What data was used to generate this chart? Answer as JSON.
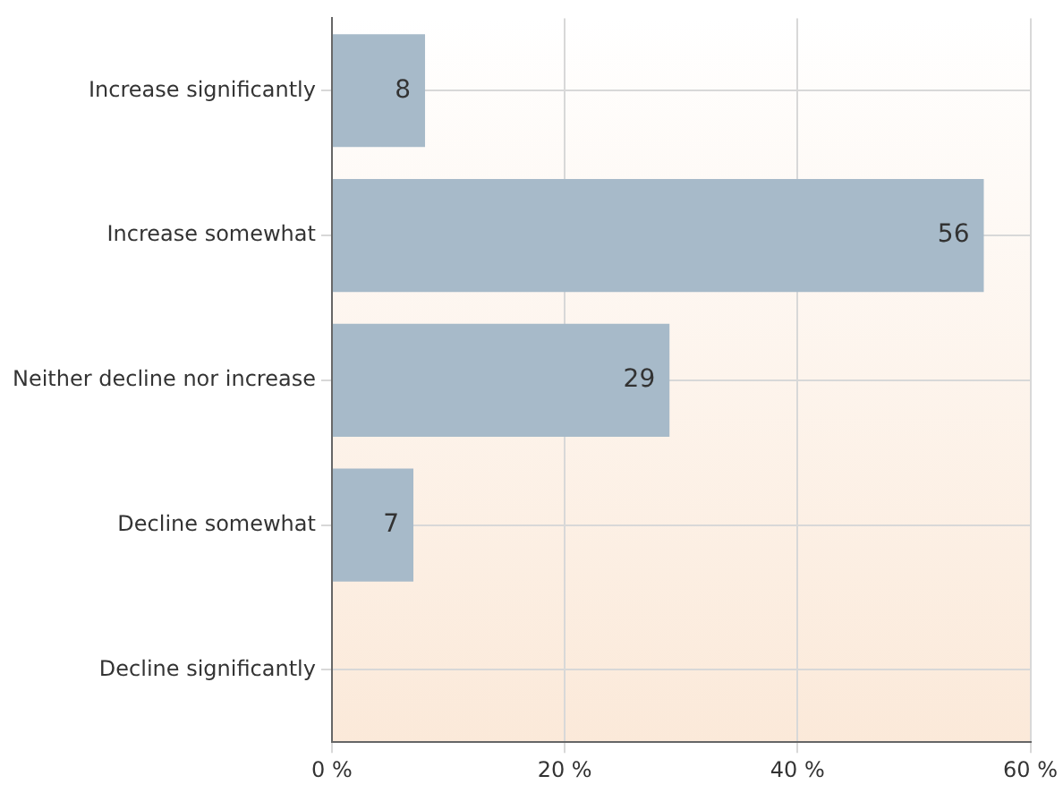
{
  "chart_data": {
    "type": "bar",
    "orientation": "horizontal",
    "categories": [
      "Increase significantly",
      "Increase somewhat",
      "Neither decline nor increase",
      "Decline somewhat",
      "Decline significantly"
    ],
    "values": [
      8,
      56,
      29,
      7,
      null
    ],
    "color": "#a7bac9",
    "xlim": [
      0,
      60
    ],
    "xticks": [
      {
        "value": 0,
        "label": "0 %"
      },
      {
        "value": 20,
        "label": "20 %"
      },
      {
        "value": 40,
        "label": "40 %"
      },
      {
        "value": 60,
        "label": "60 %"
      }
    ],
    "grid": true,
    "data_labels": true,
    "legend": false
  }
}
